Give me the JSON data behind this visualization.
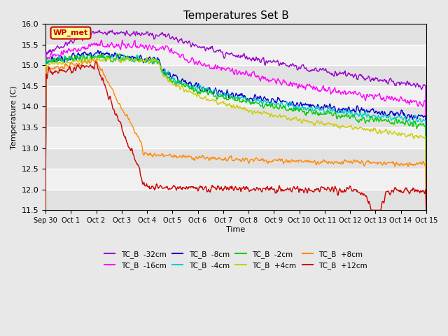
{
  "title": "Temperatures Set B",
  "xlabel": "Time",
  "ylabel": "Temperature (C)",
  "ylim": [
    11.5,
    16.0
  ],
  "yticks": [
    11.5,
    12.0,
    12.5,
    13.0,
    13.5,
    14.0,
    14.5,
    15.0,
    15.5,
    16.0
  ],
  "xtick_labels": [
    "Sep 30",
    "Oct 1",
    "Oct 2",
    "Oct 3",
    "Oct 4",
    "Oct 5",
    "Oct 6",
    "Oct 7",
    "Oct 8",
    "Oct 9",
    "Oct 10",
    "Oct 11",
    "Oct 12",
    "Oct 13",
    "Oct 14",
    "Oct 15"
  ],
  "colors": {
    "TC_B -32cm": "#9900cc",
    "TC_B -16cm": "#ff00ff",
    "TC_B -8cm": "#0000cc",
    "TC_B -4cm": "#00cccc",
    "TC_B -2cm": "#00cc00",
    "TC_B +4cm": "#cccc00",
    "TC_B +8cm": "#ff8800",
    "TC_B +12cm": "#cc0000"
  },
  "n_days": 15,
  "n_points": 720,
  "bg_color": "#e8e8e8",
  "plot_bg": "#f0f0f0",
  "WP_met_color": "#cc0000",
  "WP_met_bg": "#ffff99"
}
